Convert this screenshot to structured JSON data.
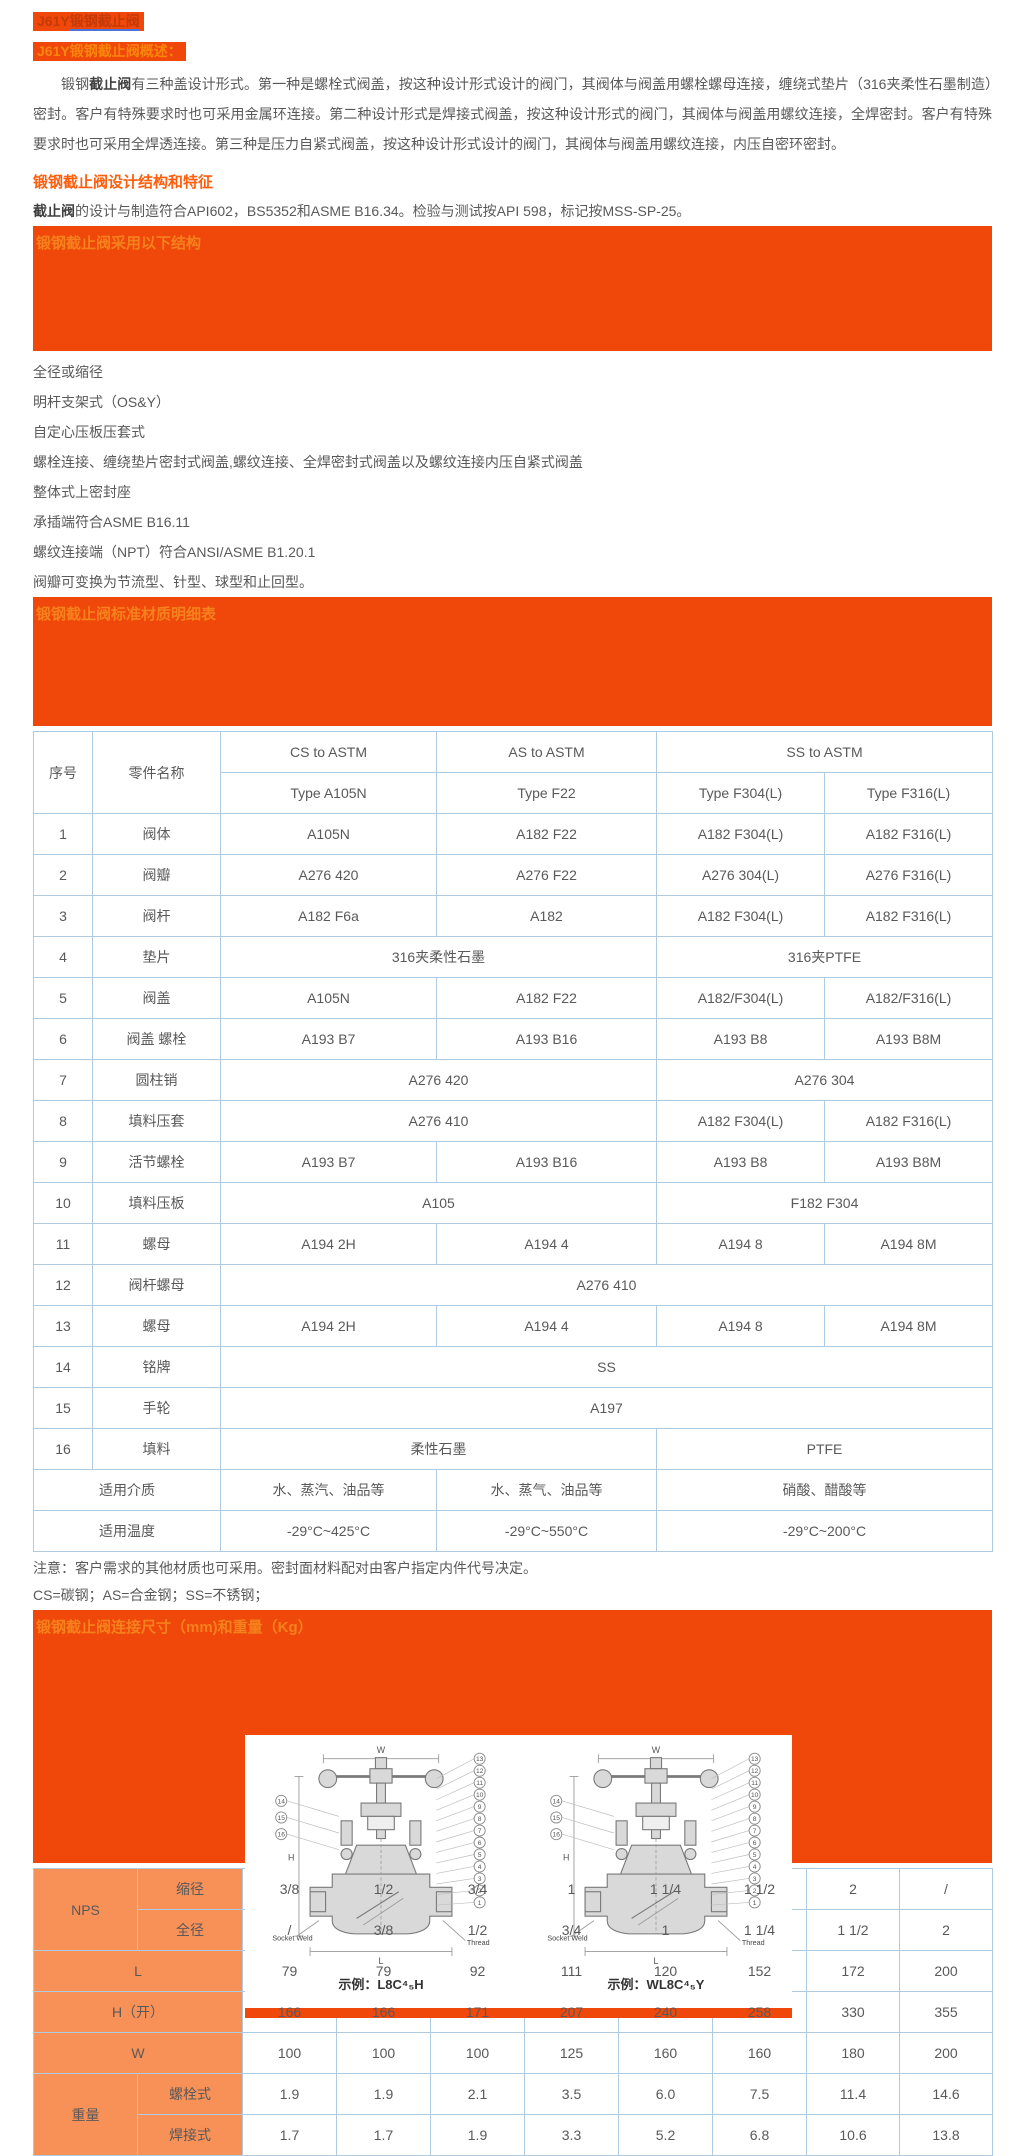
{
  "header": {
    "line1_prefix": "J61Y",
    "line1_link": "锻钢截止阀",
    "line2": "J61Y锻钢截止阀概述："
  },
  "intro": {
    "lead": "锻钢",
    "bold": "截止阀",
    "rest": "有三种盖设计形式。第一种是螺栓式阀盖，按这种设计形式设计的阀门，其阀体与阀盖用螺栓螺母连接，缠绕式垫片（316夹柔性石墨制造）密封。客户有特殊要求时也可采用金属环连接。第二种设计形式是焊接式阀盖，按这种设计形式的阀门，其阀体与阀盖用螺纹连接，全焊密封。客户有特殊要求时也可采用全焊透连接。第三种是压力自紧式阀盖，按这种设计形式设计的阀门，其阀体与阀盖用螺纹连接，内压自密环密封。"
  },
  "design": {
    "heading": "锻钢截止阀设计结构和特征",
    "spec_bold": "截止阀",
    "spec_rest": "的设计与制造符合API602，BS5352和ASME B16.34。检验与测试按API 598，标记按MSS-SP-25。"
  },
  "banners": {
    "structure": "锻钢截止阀采用以下结构",
    "materials": "锻钢截止阀标准材质明细表",
    "dimensions": "锻钢截止阀连接尺寸（mm)和重量（Kg）"
  },
  "features": [
    "全径或缩径",
    "明杆支架式（OS&Y）",
    "自定心压板压套式",
    "螺栓连接、缠绕垫片密封式阀盖,螺纹连接、全焊密封式阀盖以及螺纹连接内压自紧式阀盖",
    "整体式上密封座",
    "承插端符合ASME B16.11",
    "螺纹连接端（NPT）符合ANSI/ASME B1.20.1",
    "阀瓣可变换为节流型、针型、球型和止回型。"
  ],
  "materials_table": {
    "rows": [
      {
        "cells": [
          {
            "t": "序号",
            "rs": 2
          },
          {
            "t": "零件名称",
            "rs": 2
          },
          {
            "t": "CS to ASTM"
          },
          {
            "t": "AS to ASTM"
          },
          {
            "t": "SS to ASTM",
            "cs": 2
          }
        ]
      },
      {
        "cells": [
          {
            "t": "Type A105N"
          },
          {
            "t": "Type F22"
          },
          {
            "t": "Type F304(L)"
          },
          {
            "t": "Type F316(L)"
          }
        ]
      },
      {
        "cells": [
          {
            "t": "1"
          },
          {
            "t": "阀体"
          },
          {
            "t": "A105N"
          },
          {
            "t": "A182 F22"
          },
          {
            "t": "A182 F304(L)"
          },
          {
            "t": "A182 F316(L)"
          }
        ]
      },
      {
        "cells": [
          {
            "t": "2"
          },
          {
            "t": "阀瓣"
          },
          {
            "t": "A276 420"
          },
          {
            "t": "A276 F22"
          },
          {
            "t": "A276 304(L)"
          },
          {
            "t": "A276 F316(L)"
          }
        ]
      },
      {
        "cells": [
          {
            "t": "3"
          },
          {
            "t": "阀杆"
          },
          {
            "t": "A182 F6a"
          },
          {
            "t": "A182"
          },
          {
            "t": "A182 F304(L)"
          },
          {
            "t": "A182 F316(L)"
          }
        ]
      },
      {
        "cells": [
          {
            "t": "4"
          },
          {
            "t": "垫片"
          },
          {
            "t": "316夹柔性石墨",
            "cs": 2
          },
          {
            "t": "316夹PTFE",
            "cs": 2
          }
        ]
      },
      {
        "cells": [
          {
            "t": "5"
          },
          {
            "t": "阀盖"
          },
          {
            "t": "A105N"
          },
          {
            "t": "A182 F22"
          },
          {
            "t": "A182/F304(L)"
          },
          {
            "t": "A182/F316(L)"
          }
        ]
      },
      {
        "cells": [
          {
            "t": "6"
          },
          {
            "t": "阀盖 螺栓"
          },
          {
            "t": "A193 B7"
          },
          {
            "t": "A193 B16"
          },
          {
            "t": "A193 B8"
          },
          {
            "t": "A193 B8M"
          }
        ]
      },
      {
        "cells": [
          {
            "t": "7"
          },
          {
            "t": "圆柱销"
          },
          {
            "t": "A276 420",
            "cs": 2
          },
          {
            "t": "A276 304",
            "cs": 2
          }
        ]
      },
      {
        "cells": [
          {
            "t": "8"
          },
          {
            "t": "填料压套"
          },
          {
            "t": "A276 410",
            "cs": 2
          },
          {
            "t": "A182 F304(L)"
          },
          {
            "t": "A182 F316(L)"
          }
        ]
      },
      {
        "cells": [
          {
            "t": "9"
          },
          {
            "t": "活节螺栓"
          },
          {
            "t": "A193 B7"
          },
          {
            "t": "A193 B16"
          },
          {
            "t": "A193 B8"
          },
          {
            "t": "A193 B8M"
          }
        ]
      },
      {
        "cells": [
          {
            "t": "10"
          },
          {
            "t": "填料压板"
          },
          {
            "t": "A105",
            "cs": 2
          },
          {
            "t": "F182 F304",
            "cs": 2
          }
        ]
      },
      {
        "cells": [
          {
            "t": "11"
          },
          {
            "t": "螺母"
          },
          {
            "t": "A194 2H"
          },
          {
            "t": "A194 4"
          },
          {
            "t": "A194 8"
          },
          {
            "t": "A194 8M"
          }
        ]
      },
      {
        "cells": [
          {
            "t": "12"
          },
          {
            "t": "阀杆螺母"
          },
          {
            "t": "A276 410",
            "cs": 4
          }
        ]
      },
      {
        "cells": [
          {
            "t": "13"
          },
          {
            "t": "螺母"
          },
          {
            "t": "A194 2H"
          },
          {
            "t": "A194 4"
          },
          {
            "t": "A194 8"
          },
          {
            "t": "A194 8M"
          }
        ]
      },
      {
        "cells": [
          {
            "t": "14"
          },
          {
            "t": "铭牌"
          },
          {
            "t": "SS",
            "cs": 4
          }
        ]
      },
      {
        "cells": [
          {
            "t": "15"
          },
          {
            "t": "手轮"
          },
          {
            "t": "A197",
            "cs": 4
          }
        ]
      },
      {
        "cells": [
          {
            "t": "16"
          },
          {
            "t": "填料"
          },
          {
            "t": "柔性石墨",
            "cs": 2
          },
          {
            "t": "PTFE",
            "cs": 2
          }
        ]
      },
      {
        "cells": [
          {
            "t": "适用介质",
            "cs": 2
          },
          {
            "t": "水、蒸汽、油品等"
          },
          {
            "t": "水、蒸气、油品等"
          },
          {
            "t": "硝酸、醋酸等",
            "cs": 2
          }
        ]
      },
      {
        "cells": [
          {
            "t": "适用温度",
            "cs": 2
          },
          {
            "t": "-29°C~425°C"
          },
          {
            "t": "-29°C~550°C"
          },
          {
            "t": "-29°C~200°C",
            "cs": 2
          }
        ]
      }
    ]
  },
  "notes": [
    "注意：客户需求的其他材质也可采用。密封面材料配对由客户指定内件代号决定。",
    "CS=碳钢；AS=合金钢；SS=不锈钢；"
  ],
  "dims_table": {
    "rows": [
      {
        "cells": [
          {
            "t": "NPS",
            "rs": 2,
            "h": 1
          },
          {
            "t": "缩径",
            "h": 1
          },
          {
            "t": "3/8"
          },
          {
            "t": "1/2"
          },
          {
            "t": "3/4"
          },
          {
            "t": "1"
          },
          {
            "t": "1 1/4"
          },
          {
            "t": "1 1/2"
          },
          {
            "t": "2"
          },
          {
            "t": "/"
          }
        ]
      },
      {
        "cells": [
          {
            "t": "全径",
            "h": 1
          },
          {
            "t": "/"
          },
          {
            "t": "3/8"
          },
          {
            "t": "1/2"
          },
          {
            "t": "3/4"
          },
          {
            "t": "1"
          },
          {
            "t": "1 1/4"
          },
          {
            "t": "1 1/2"
          },
          {
            "t": "2"
          }
        ]
      },
      {
        "cells": [
          {
            "t": "L",
            "cs": 2,
            "h": 1
          },
          {
            "t": "79"
          },
          {
            "t": "79"
          },
          {
            "t": "92"
          },
          {
            "t": "111"
          },
          {
            "t": "120"
          },
          {
            "t": "152"
          },
          {
            "t": "172"
          },
          {
            "t": "200"
          }
        ]
      },
      {
        "cells": [
          {
            "t": "H（开）",
            "cs": 2,
            "h": 1
          },
          {
            "t": "166"
          },
          {
            "t": "166"
          },
          {
            "t": "171"
          },
          {
            "t": "207"
          },
          {
            "t": "240"
          },
          {
            "t": "258"
          },
          {
            "t": "330"
          },
          {
            "t": "355"
          }
        ]
      },
      {
        "cells": [
          {
            "t": "W",
            "cs": 2,
            "h": 1
          },
          {
            "t": "100"
          },
          {
            "t": "100"
          },
          {
            "t": "100"
          },
          {
            "t": "125"
          },
          {
            "t": "160"
          },
          {
            "t": "160"
          },
          {
            "t": "180"
          },
          {
            "t": "200"
          }
        ]
      },
      {
        "cells": [
          {
            "t": "重量",
            "rs": 2,
            "h": 1
          },
          {
            "t": "螺栓式",
            "h": 1
          },
          {
            "t": "1.9"
          },
          {
            "t": "1.9"
          },
          {
            "t": "2.1"
          },
          {
            "t": "3.5"
          },
          {
            "t": "6.0"
          },
          {
            "t": "7.5"
          },
          {
            "t": "11.4"
          },
          {
            "t": "14.6"
          }
        ]
      },
      {
        "cells": [
          {
            "t": "焊接式",
            "h": 1
          },
          {
            "t": "1.7"
          },
          {
            "t": "1.7"
          },
          {
            "t": "1.9"
          },
          {
            "t": "3.3"
          },
          {
            "t": "5.2"
          },
          {
            "t": "6.8"
          },
          {
            "t": "10.6"
          },
          {
            "t": "13.8"
          }
        ]
      }
    ]
  },
  "valve_image": {
    "captions": [
      "示例：L8C⁴₅H",
      "示例：WL8C⁴₅Y"
    ],
    "labels": {
      "w": "W",
      "h": "H",
      "l": "L",
      "socket": "Socket Weld",
      "thread": "Thread"
    },
    "callouts_right": [
      "13",
      "12",
      "11",
      "10",
      "9",
      "8",
      "7",
      "6",
      "5",
      "4",
      "3",
      "2",
      "1"
    ],
    "callouts_left": [
      "14",
      "15",
      "16"
    ]
  },
  "colors": {
    "banner_bg": "#F0480B",
    "banner_title": "#F5821C",
    "section_heading": "#FF5E0C",
    "table_border": "#AECBE2",
    "dims_header_bg": "#F89158",
    "body_text": "#595959",
    "title1_text": "#C43A08",
    "link_underline": "#4A74D8"
  }
}
